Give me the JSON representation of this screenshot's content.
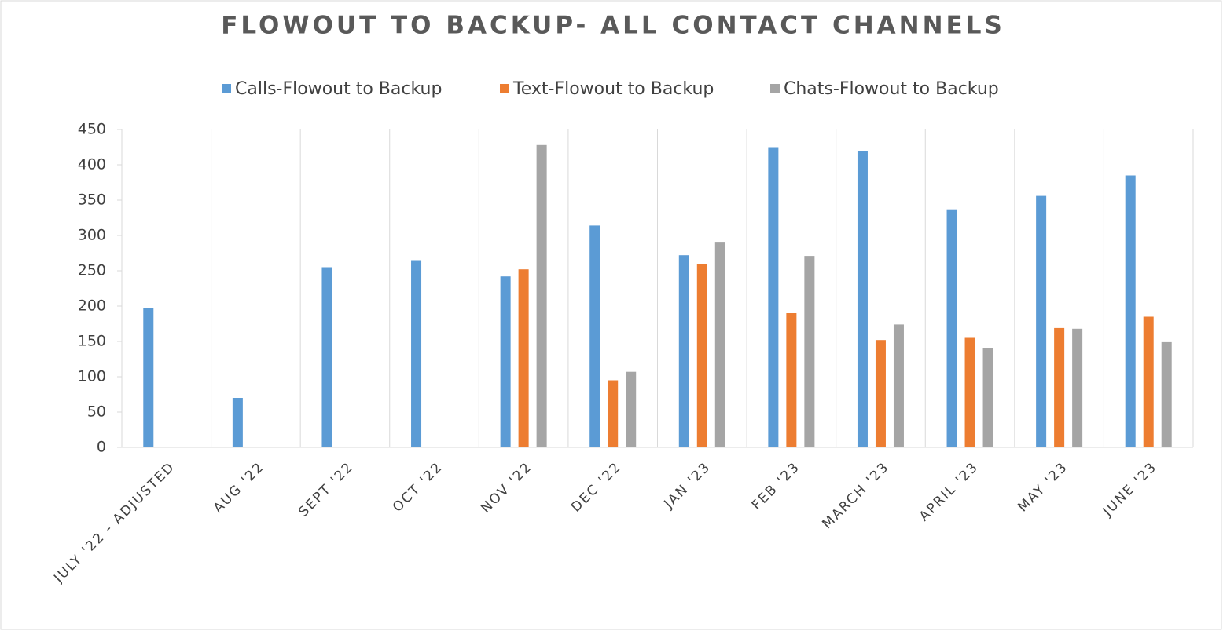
{
  "chart_data": {
    "type": "bar",
    "title": "FLOWOUT TO BACKUP- ALL CONTACT CHANNELS",
    "categories": [
      "JULY '22 - ADJUSTED",
      "AUG  '22",
      "SEPT  '22",
      "OCT  '22",
      "NOV  '22",
      "DEC  '22",
      "JAN  '23",
      "FEB  '23",
      "MARCH '23",
      "APRIL '23",
      "MAY '23",
      "JUNE '23"
    ],
    "series": [
      {
        "name": "Calls-Flowout to Backup",
        "color": "#5b9bd5",
        "values": [
          197,
          70,
          255,
          265,
          242,
          314,
          272,
          425,
          419,
          337,
          356,
          385
        ]
      },
      {
        "name": "Text-Flowout to Backup",
        "color": "#ed7d31",
        "values": [
          0,
          0,
          0,
          0,
          252,
          95,
          259,
          190,
          152,
          155,
          169,
          185
        ]
      },
      {
        "name": "Chats-Flowout to Backup",
        "color": "#a5a5a5",
        "values": [
          0,
          0,
          0,
          0,
          428,
          107,
          291,
          271,
          174,
          140,
          168,
          149
        ]
      }
    ],
    "ylim": [
      0,
      450
    ],
    "yticks": [
      0,
      50,
      100,
      150,
      200,
      250,
      300,
      350,
      400,
      450
    ],
    "grid": true,
    "legend": "top"
  }
}
